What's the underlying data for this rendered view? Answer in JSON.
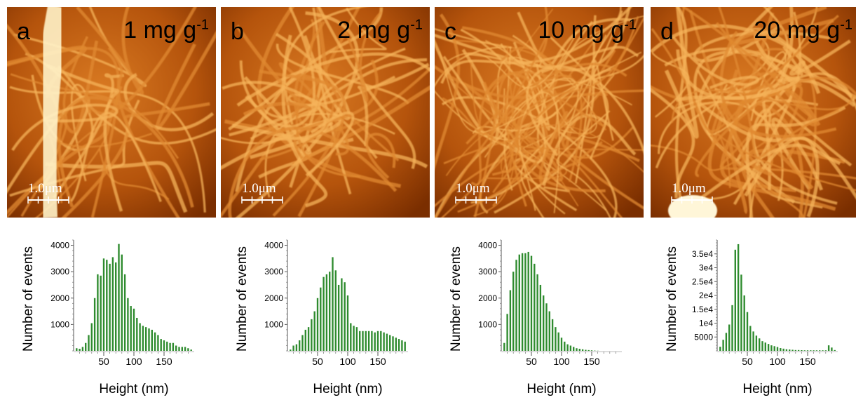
{
  "panels": [
    {
      "letter": "a",
      "conc_value": "1 mg g",
      "conc_exp": "-1",
      "scalebar": "1.0μm"
    },
    {
      "letter": "b",
      "conc_value": "2 mg g",
      "conc_exp": "-1",
      "scalebar": "1.0μm"
    },
    {
      "letter": "c",
      "conc_value": "10 mg g",
      "conc_exp": "-1",
      "scalebar": "1.0μm"
    },
    {
      "letter": "d",
      "conc_value": "20 mg g",
      "conc_exp": "-1",
      "scalebar": "1.0μm"
    }
  ],
  "colors": {
    "bar": "#2e8b2e",
    "afm_dark": "#7a2e00",
    "afm_mid": "#c8620e",
    "afm_light": "#ffd88a"
  },
  "chart_data": [
    {
      "type": "bar",
      "title": "",
      "xlabel": "Height (nm)",
      "ylabel": "Number of events",
      "xlim": [
        0,
        200
      ],
      "ylim": [
        0,
        4200
      ],
      "xticks": [
        50,
        100,
        150
      ],
      "xtick_labels": [
        "50",
        "100",
        "150"
      ],
      "yticks": [
        1000,
        2000,
        3000,
        4000
      ],
      "ytick_labels": [
        "1000",
        "2000",
        "3000",
        "4000"
      ],
      "x": [
        5,
        10,
        15,
        20,
        25,
        30,
        35,
        40,
        45,
        50,
        55,
        60,
        65,
        70,
        75,
        80,
        85,
        90,
        95,
        100,
        105,
        110,
        115,
        120,
        125,
        130,
        135,
        140,
        145,
        150,
        155,
        160,
        165,
        170,
        175,
        180,
        185,
        190,
        195
      ],
      "values": [
        100,
        80,
        150,
        300,
        600,
        1050,
        2000,
        2900,
        2850,
        3500,
        3450,
        3300,
        3550,
        3350,
        4050,
        3650,
        2900,
        2000,
        1700,
        1600,
        1250,
        1050,
        950,
        900,
        850,
        800,
        700,
        600,
        450,
        400,
        350,
        300,
        300,
        200,
        150,
        150,
        150,
        100,
        50
      ]
    },
    {
      "type": "bar",
      "title": "",
      "xlabel": "Height (nm)",
      "ylabel": "Number of events",
      "xlim": [
        0,
        200
      ],
      "ylim": [
        0,
        4200
      ],
      "xticks": [
        50,
        100,
        150
      ],
      "xtick_labels": [
        "50",
        "100",
        "150"
      ],
      "yticks": [
        1000,
        2000,
        3000,
        4000
      ],
      "ytick_labels": [
        "1000",
        "2000",
        "3000",
        "4000"
      ],
      "x": [
        5,
        10,
        15,
        20,
        25,
        30,
        35,
        40,
        45,
        50,
        55,
        60,
        65,
        70,
        75,
        80,
        85,
        90,
        95,
        100,
        105,
        110,
        115,
        120,
        125,
        130,
        135,
        140,
        145,
        150,
        155,
        160,
        165,
        170,
        175,
        180,
        185,
        190,
        195
      ],
      "values": [
        50,
        200,
        250,
        400,
        600,
        800,
        900,
        1200,
        1500,
        2000,
        2400,
        2800,
        2900,
        3000,
        3550,
        3050,
        2500,
        2750,
        2600,
        2100,
        1050,
        950,
        900,
        750,
        750,
        750,
        750,
        750,
        700,
        750,
        750,
        700,
        650,
        600,
        550,
        500,
        450,
        400,
        350
      ]
    },
    {
      "type": "bar",
      "title": "",
      "xlabel": "Height (nm)",
      "ylabel": "Number of events",
      "xlim": [
        0,
        200
      ],
      "ylim": [
        0,
        4200
      ],
      "xticks": [
        50,
        100,
        150
      ],
      "xtick_labels": [
        "50",
        "100",
        "150"
      ],
      "yticks": [
        1000,
        2000,
        3000,
        4000
      ],
      "ytick_labels": [
        "1000",
        "2000",
        "3000",
        "4000"
      ],
      "x": [
        5,
        10,
        15,
        20,
        25,
        30,
        35,
        40,
        45,
        50,
        55,
        60,
        65,
        70,
        75,
        80,
        85,
        90,
        95,
        100,
        105,
        110,
        115,
        120,
        125,
        130,
        135,
        140,
        145,
        150,
        155,
        160,
        165,
        170,
        175,
        180,
        185,
        190,
        195
      ],
      "values": [
        300,
        1400,
        2300,
        3000,
        3450,
        3650,
        3700,
        3700,
        3750,
        3600,
        3300,
        2900,
        2500,
        2100,
        1800,
        1500,
        1200,
        900,
        700,
        500,
        350,
        250,
        200,
        150,
        100,
        80,
        60,
        40,
        30,
        20,
        10,
        5,
        0,
        0,
        0,
        0,
        0,
        0,
        0
      ]
    },
    {
      "type": "bar",
      "title": "",
      "xlabel": "Height (nm)",
      "ylabel": "Number of events",
      "xlim": [
        0,
        200
      ],
      "ylim": [
        0,
        40000
      ],
      "xticks": [
        50,
        100,
        150
      ],
      "xtick_labels": [
        "50",
        "100",
        "150"
      ],
      "yticks": [
        5000,
        10000,
        15000,
        20000,
        25000,
        30000,
        35000
      ],
      "ytick_labels": [
        "5000",
        "1e4",
        "1.5e4",
        "2e4",
        "2.5e4",
        "3e4",
        "3.5e4"
      ],
      "x": [
        5,
        10,
        15,
        20,
        25,
        30,
        35,
        40,
        45,
        50,
        55,
        60,
        65,
        70,
        75,
        80,
        85,
        90,
        95,
        100,
        105,
        110,
        115,
        120,
        125,
        130,
        135,
        140,
        145,
        150,
        155,
        160,
        165,
        170,
        175,
        180,
        185,
        190,
        195
      ],
      "values": [
        1500,
        4000,
        6500,
        9500,
        16500,
        36500,
        38500,
        27500,
        20000,
        14000,
        9000,
        7000,
        5500,
        4500,
        3500,
        3000,
        2500,
        2000,
        1700,
        1400,
        1000,
        800,
        600,
        500,
        400,
        300,
        300,
        250,
        200,
        200,
        200,
        200,
        200,
        200,
        200,
        200,
        2000,
        1200,
        300
      ]
    }
  ]
}
